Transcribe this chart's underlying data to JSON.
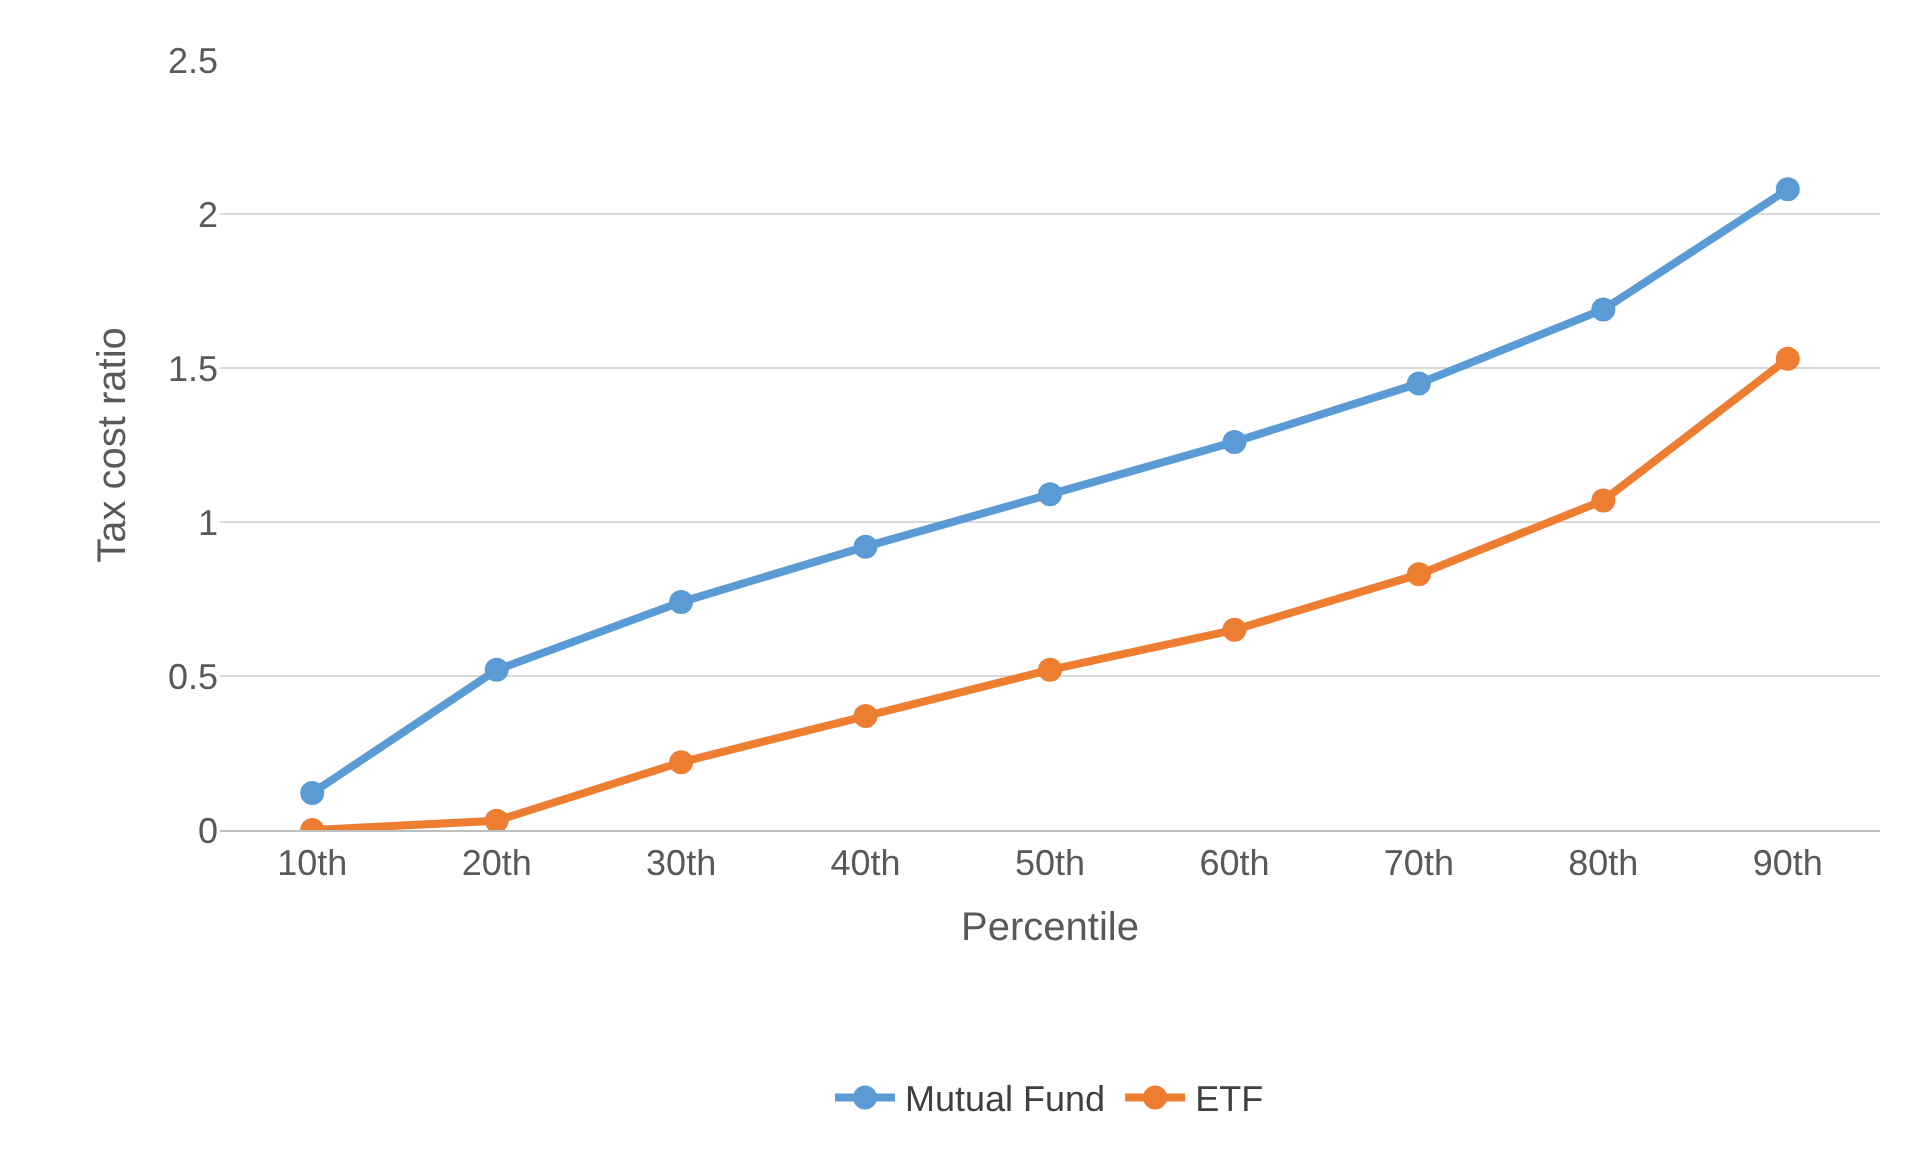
{
  "chart_data": {
    "type": "line",
    "xlabel": "Percentile",
    "ylabel": "Tax cost ratio",
    "categories": [
      "10th",
      "20th",
      "30th",
      "40th",
      "50th",
      "60th",
      "70th",
      "80th",
      "90th"
    ],
    "series": [
      {
        "name": "Mutual Fund",
        "color": "#5b9bd5",
        "values": [
          0.12,
          0.52,
          0.74,
          0.92,
          1.09,
          1.26,
          1.45,
          1.69,
          2.08
        ]
      },
      {
        "name": "ETF",
        "color": "#ed7d31",
        "values": [
          0,
          0.03,
          0.22,
          0.37,
          0.52,
          0.65,
          0.83,
          1.07,
          1.53
        ]
      }
    ],
    "ylim": [
      0,
      2.5
    ],
    "yticks": [
      0,
      0.5,
      1,
      1.5,
      2,
      2.5
    ],
    "grid": "y",
    "legend": "bottom",
    "marker": "circle",
    "line_style": "solid"
  }
}
